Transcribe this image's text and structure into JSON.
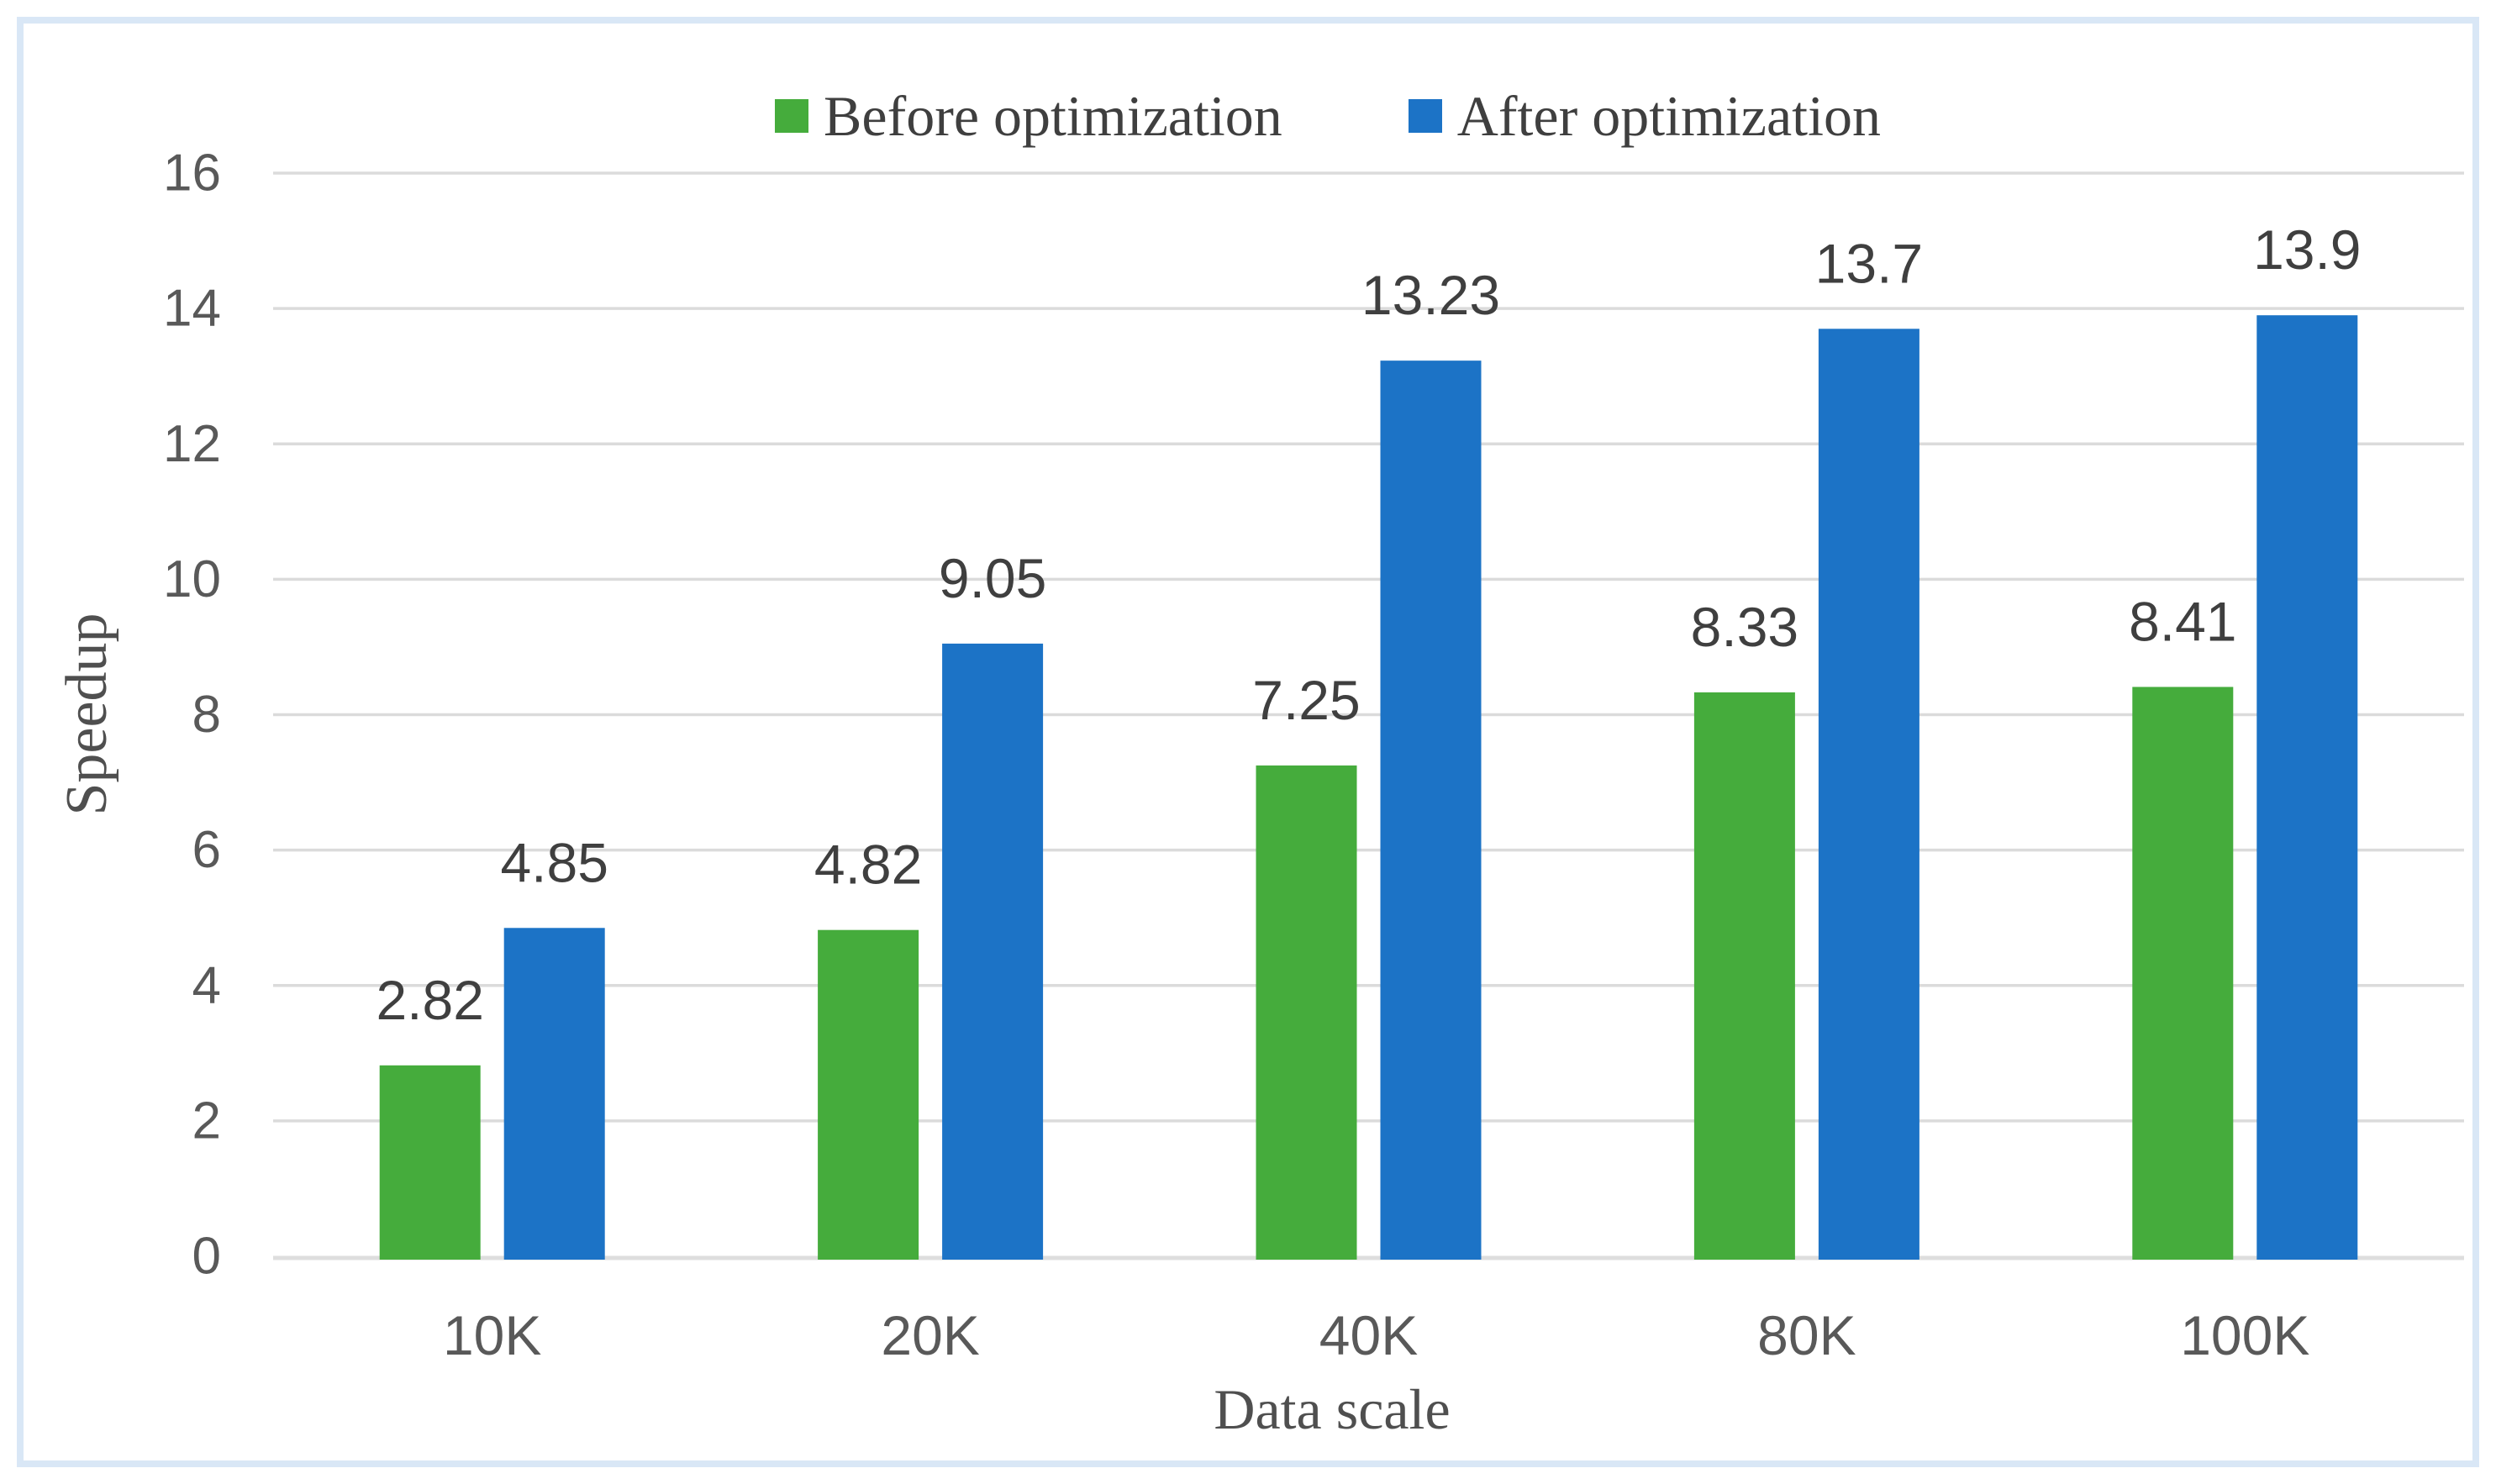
{
  "figure": {
    "background": "#ffffff",
    "border_color": "#d9e7f6"
  },
  "chart_data": {
    "type": "bar",
    "title": "",
    "xlabel": "Data scale",
    "ylabel": "Speedup",
    "categories": [
      "10K",
      "20K",
      "40K",
      "80K",
      "100K"
    ],
    "series": [
      {
        "name": "Before optimization",
        "color": "#45ac3c",
        "values": [
          2.82,
          4.82,
          7.25,
          8.33,
          8.41
        ],
        "labels": [
          "2.82",
          "4.82",
          "7.25",
          "8.33",
          "8.41"
        ]
      },
      {
        "name": "After optimization",
        "color": "#1c73c6",
        "values": [
          4.85,
          9.05,
          13.23,
          13.7,
          13.9
        ],
        "labels": [
          "4.85",
          "9.05",
          "13.23",
          "13.7",
          "13.9"
        ]
      }
    ],
    "ylim": [
      0,
      16
    ],
    "ytick_step": 2,
    "yticks": [
      "0",
      "2",
      "4",
      "6",
      "8",
      "10",
      "12",
      "14",
      "16"
    ],
    "grid": "horizontal",
    "legend_position": "top-center",
    "axis_text_color": "#595959",
    "data_label_color": "#3f3f3f",
    "gridline_color": "#dbdbdb",
    "baseline_color": "#dedede"
  }
}
